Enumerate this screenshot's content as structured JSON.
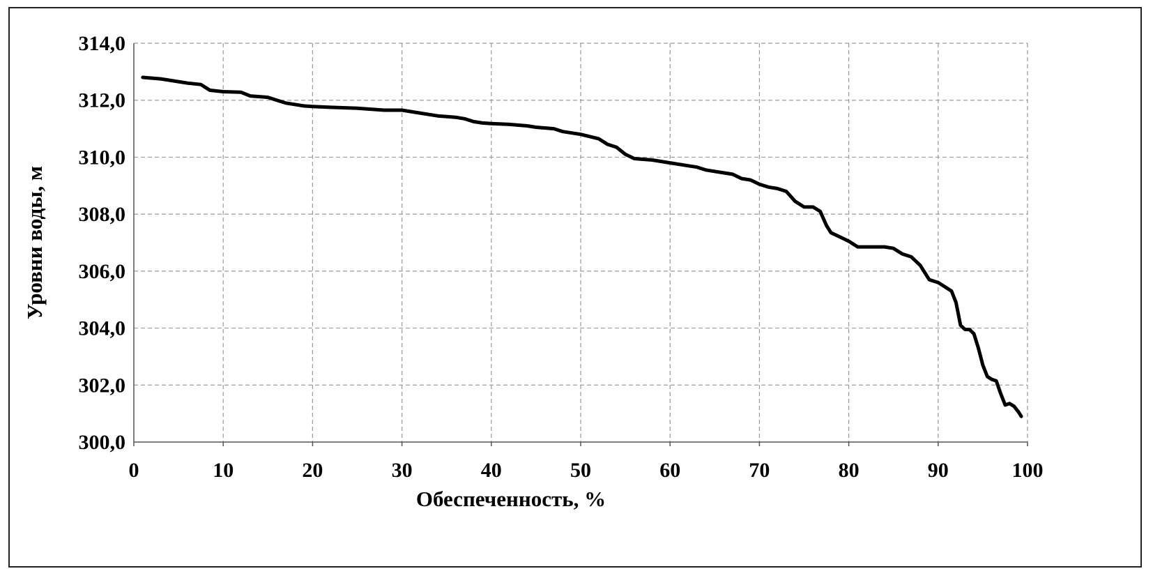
{
  "chart_data": {
    "type": "line",
    "title": "",
    "xlabel": "Обеспеченность, %",
    "ylabel": "Уровни воды, м",
    "xlim": [
      0,
      100
    ],
    "ylim": [
      300,
      314
    ],
    "x_ticks": [
      0,
      10,
      20,
      30,
      40,
      50,
      60,
      70,
      80,
      90,
      100
    ],
    "x_tick_labels": [
      "0",
      "10",
      "20",
      "30",
      "40",
      "50",
      "60",
      "70",
      "80",
      "90",
      "100"
    ],
    "y_ticks": [
      300,
      302,
      304,
      306,
      308,
      310,
      312,
      314
    ],
    "y_tick_labels": [
      "300,0",
      "302,0",
      "304,0",
      "306,0",
      "308,0",
      "310,0",
      "312,0",
      "314,0"
    ],
    "grid": true,
    "legend": "none",
    "series": [
      {
        "color": "#000000",
        "x": [
          1,
          3,
          4,
          6,
          7.5,
          8.5,
          10,
          12,
          13,
          15,
          16,
          17,
          18,
          19,
          20,
          22,
          25,
          28,
          30,
          32,
          34,
          36,
          37,
          38,
          39,
          40,
          42,
          44,
          45,
          47,
          48,
          50,
          52,
          53,
          54,
          55,
          56,
          58,
          60,
          62,
          63,
          64,
          66,
          67,
          68,
          69,
          70,
          71,
          72,
          73,
          74,
          75,
          76,
          76.8,
          77.5,
          78,
          79,
          80,
          81,
          82,
          83,
          84,
          85,
          86,
          87,
          88,
          88.5,
          89,
          90,
          91,
          91.5,
          92,
          92.5,
          93,
          93.5,
          94,
          94.5,
          95,
          95.5,
          96,
          96.5,
          97,
          97.5,
          98,
          98.5,
          99,
          99.3
        ],
        "y": [
          312.8,
          312.75,
          312.7,
          312.6,
          312.55,
          312.35,
          312.3,
          312.28,
          312.15,
          312.1,
          312.0,
          311.9,
          311.85,
          311.8,
          311.78,
          311.75,
          311.72,
          311.65,
          311.65,
          311.55,
          311.45,
          311.4,
          311.35,
          311.25,
          311.2,
          311.18,
          311.15,
          311.1,
          311.05,
          311.0,
          310.9,
          310.8,
          310.65,
          310.45,
          310.35,
          310.1,
          309.95,
          309.9,
          309.8,
          309.7,
          309.65,
          309.55,
          309.45,
          309.4,
          309.25,
          309.2,
          309.05,
          308.95,
          308.9,
          308.8,
          308.45,
          308.25,
          308.25,
          308.1,
          307.6,
          307.35,
          307.2,
          307.05,
          306.85,
          306.85,
          306.85,
          306.85,
          306.8,
          306.6,
          306.5,
          306.2,
          305.95,
          305.7,
          305.6,
          305.4,
          305.3,
          304.9,
          304.1,
          303.95,
          303.95,
          303.8,
          303.3,
          302.7,
          302.3,
          302.2,
          302.15,
          301.7,
          301.3,
          301.35,
          301.25,
          301.05,
          300.9
        ]
      }
    ]
  }
}
